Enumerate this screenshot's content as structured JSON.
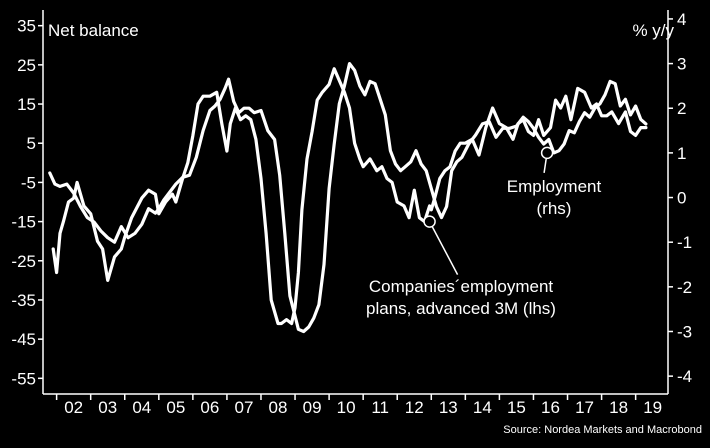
{
  "chart_data": {
    "type": "line",
    "left_axis_title": "Net balance",
    "right_axis_title": "% y/y",
    "x_tick_labels": [
      "02",
      "03",
      "04",
      "05",
      "06",
      "07",
      "08",
      "09",
      "10",
      "11",
      "12",
      "13",
      "14",
      "15",
      "16",
      "17",
      "18",
      "19"
    ],
    "x_range": [
      2001.6,
      2019.95
    ],
    "left_axis": {
      "range": [
        -59,
        39
      ],
      "ticks": [
        35,
        25,
        15,
        5,
        -5,
        -15,
        -25,
        -35,
        -45,
        -55
      ]
    },
    "right_axis": {
      "range": [
        -4.4,
        4.2
      ],
      "ticks": [
        4,
        3,
        2,
        1,
        0,
        -1,
        -2,
        -3,
        -4
      ]
    },
    "series": [
      {
        "name": "Companies´employment plans, advanced 3M (lhs)",
        "axis": "left",
        "x": [
          2001.9,
          2002.0,
          2002.1,
          2002.2,
          2002.35,
          2002.5,
          2002.6,
          2002.8,
          2003.0,
          2003.2,
          2003.35,
          2003.5,
          2003.7,
          2003.9,
          2004.0,
          2004.2,
          2004.5,
          2004.7,
          2004.9,
          2005.0,
          2005.2,
          2005.4,
          2005.5,
          2005.7,
          2005.85,
          2006.0,
          2006.15,
          2006.3,
          2006.5,
          2006.7,
          2006.85,
          2007.0,
          2007.1,
          2007.25,
          2007.4,
          2007.55,
          2007.7,
          2007.85,
          2008.0,
          2008.15,
          2008.3,
          2008.5,
          2008.6,
          2008.75,
          2008.9,
          2009.0,
          2009.1,
          2009.2,
          2009.35,
          2009.5,
          2009.65,
          2009.8,
          2010.0,
          2010.15,
          2010.3,
          2010.45,
          2010.6,
          2010.75,
          2010.9,
          2011.0,
          2011.2,
          2011.4,
          2011.55,
          2011.7,
          2011.85,
          2012.0,
          2012.2,
          2012.35,
          2012.5,
          2012.65,
          2012.8,
          2012.95,
          2013.0,
          2013.1,
          2013.25,
          2013.4,
          2013.55,
          2013.7,
          2013.85,
          2014.0,
          2014.2,
          2014.4,
          2014.6,
          2014.8,
          2015.0,
          2015.2,
          2015.4,
          2015.55,
          2015.7,
          2015.85,
          2016.0,
          2016.15,
          2016.3,
          2016.5,
          2016.65,
          2016.8,
          2016.95,
          2017.1,
          2017.3,
          2017.5,
          2017.7,
          2017.85,
          2018.0,
          2018.15,
          2018.3,
          2018.5,
          2018.7,
          2018.85,
          2019.0,
          2019.15,
          2019.3
        ],
        "y": [
          -22,
          -28,
          -18,
          -15,
          -10,
          -9,
          -5,
          -11,
          -13,
          -20,
          -22,
          -30,
          -24,
          -22,
          -19,
          -14,
          -9,
          -7,
          -8,
          -13,
          -10,
          -8,
          -10,
          -4,
          0,
          7,
          15,
          17,
          17,
          18,
          10,
          3,
          10,
          14,
          11,
          12,
          11,
          6,
          -4,
          -18,
          -35,
          -41,
          -41,
          -40,
          -41,
          -37,
          -28,
          -12,
          1,
          8,
          16,
          18,
          20,
          24,
          21,
          18,
          14,
          5,
          1,
          -1,
          1,
          -2,
          -1,
          -4,
          -5,
          -10,
          -11,
          -14,
          -7,
          -14,
          -15,
          -11,
          -12,
          -9,
          -4,
          -2,
          -1,
          3,
          5,
          5,
          6,
          2,
          9,
          14,
          10,
          9,
          6,
          10,
          11,
          8,
          7,
          11,
          7,
          9,
          16,
          14,
          17,
          11,
          19,
          18,
          14,
          15,
          12,
          12,
          13,
          10,
          13,
          8,
          7,
          9,
          9
        ]
      },
      {
        "name": "Employment (rhs)",
        "axis": "right",
        "x": [
          2001.8,
          2001.95,
          2002.1,
          2002.3,
          2002.5,
          2002.7,
          2002.9,
          2003.1,
          2003.3,
          2003.5,
          2003.7,
          2003.9,
          2004.1,
          2004.3,
          2004.5,
          2004.7,
          2004.9,
          2005.0,
          2005.15,
          2005.3,
          2005.5,
          2005.7,
          2005.9,
          2006.1,
          2006.3,
          2006.5,
          2006.65,
          2006.8,
          2006.95,
          2007.05,
          2007.2,
          2007.35,
          2007.5,
          2007.65,
          2007.8,
          2008.0,
          2008.2,
          2008.4,
          2008.55,
          2008.7,
          2008.85,
          2009.0,
          2009.1,
          2009.25,
          2009.4,
          2009.55,
          2009.7,
          2009.85,
          2010.0,
          2010.15,
          2010.3,
          2010.45,
          2010.6,
          2010.75,
          2010.9,
          2011.05,
          2011.2,
          2011.35,
          2011.5,
          2011.65,
          2011.8,
          2011.95,
          2012.1,
          2012.25,
          2012.4,
          2012.55,
          2012.7,
          2012.85,
          2013.0,
          2013.15,
          2013.3,
          2013.45,
          2013.6,
          2013.75,
          2013.9,
          2014.1,
          2014.3,
          2014.5,
          2014.7,
          2014.9,
          2015.1,
          2015.3,
          2015.5,
          2015.7,
          2015.85,
          2016.0,
          2016.15,
          2016.3,
          2016.45,
          2016.6,
          2016.75,
          2016.9,
          2017.05,
          2017.2,
          2017.35,
          2017.5,
          2017.65,
          2017.8,
          2017.95,
          2018.1,
          2018.25,
          2018.4,
          2018.55,
          2018.7,
          2018.85,
          2019.0,
          2019.15,
          2019.3
        ],
        "y": [
          0.55,
          0.3,
          0.25,
          0.3,
          0.1,
          -0.2,
          -0.45,
          -0.55,
          -0.75,
          -0.9,
          -1.0,
          -0.65,
          -0.9,
          -0.8,
          -0.6,
          -0.25,
          -0.35,
          -0.25,
          -0.05,
          0.1,
          0.3,
          0.45,
          0.5,
          0.9,
          1.5,
          1.95,
          2.05,
          2.2,
          2.45,
          2.65,
          2.15,
          1.9,
          2.0,
          2.0,
          1.9,
          1.95,
          1.5,
          1.3,
          0.5,
          -0.8,
          -2.2,
          -2.65,
          -2.95,
          -3.0,
          -2.9,
          -2.7,
          -2.4,
          -1.5,
          0.2,
          1.2,
          2.1,
          2.5,
          3.0,
          2.85,
          2.5,
          2.3,
          2.6,
          2.55,
          2.2,
          1.85,
          1.05,
          0.75,
          0.6,
          0.7,
          0.8,
          1.05,
          0.75,
          0.6,
          0.2,
          -0.2,
          -0.45,
          -0.2,
          0.6,
          0.8,
          0.9,
          1.2,
          1.4,
          1.65,
          1.7,
          1.35,
          1.55,
          1.55,
          1.6,
          1.8,
          1.7,
          1.55,
          1.35,
          1.2,
          1.3,
          1.0,
          1.05,
          1.2,
          1.5,
          1.45,
          1.7,
          1.9,
          1.8,
          2.0,
          2.1,
          2.3,
          2.6,
          2.55,
          2.05,
          2.2,
          1.85,
          2.05,
          1.75,
          1.65
        ]
      }
    ],
    "annotations": [
      {
        "text_lines": [
          "Employment",
          "(rhs)"
        ],
        "points_to": {
          "x": 2016.4,
          "y": 1.0,
          "axis": "right"
        }
      },
      {
        "text_lines": [
          "Companies´employment",
          "plans, advanced 3M (lhs)"
        ],
        "points_to": {
          "x": 2012.95,
          "y": -15,
          "axis": "left"
        }
      }
    ],
    "source": "Source: Nordea Markets and Macrobond",
    "grid": false,
    "legend": "none",
    "colors": {
      "background": "#000000",
      "line": "#ffffff",
      "text": "#ffffff"
    }
  }
}
